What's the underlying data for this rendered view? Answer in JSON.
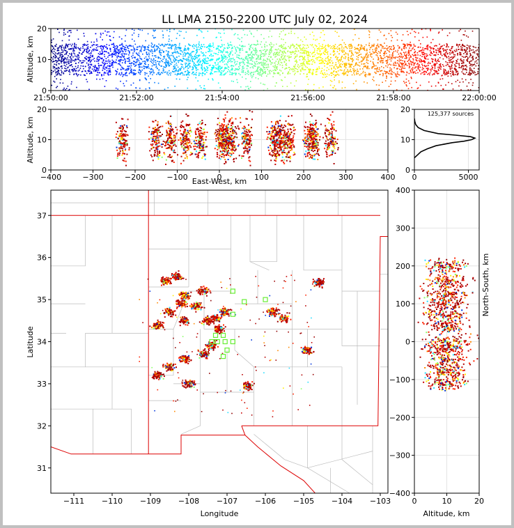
{
  "title": "LL LMA 2150-2200 UTC July 02, 2024",
  "chart_data": [
    {
      "id": "time-height",
      "type": "scatter",
      "xlabel": "",
      "ylabel": "Altitude, km",
      "xlim": [
        "21:50:00",
        "22:00:00"
      ],
      "ylim": [
        0,
        20
      ],
      "xticks": [
        "21:50:00",
        "21:52:00",
        "21:54:00",
        "21:56:00",
        "21:58:00",
        "22:00:00"
      ],
      "yticks": [
        0,
        10,
        20
      ],
      "color_by": "time",
      "colormap": "jet",
      "altitude_core_km": [
        5,
        15
      ]
    },
    {
      "id": "ew-altitude",
      "type": "scatter",
      "xlabel": "East-West, km",
      "ylabel": "Altitude, km",
      "xlim": [
        -400,
        400
      ],
      "ylim": [
        0,
        20
      ],
      "xticks": [
        -400,
        -300,
        -200,
        -100,
        0,
        100,
        200,
        300,
        400
      ],
      "yticks": [
        0,
        10,
        20
      ],
      "grid": true,
      "clusters_x_km": [
        -230,
        -150,
        -115,
        -80,
        -45,
        5,
        15,
        30,
        65,
        130,
        145,
        165,
        215,
        225,
        265
      ]
    },
    {
      "id": "altitude-histogram",
      "type": "line",
      "annotation": "125,377 sources",
      "xlim": [
        0,
        6000
      ],
      "ylim": [
        0,
        20
      ],
      "xticks": [
        0,
        5000
      ],
      "yticks": [
        0,
        10,
        20
      ],
      "altitude_km": [
        4,
        5,
        6,
        7,
        8,
        9,
        9.5,
        10,
        10.5,
        11,
        11.5,
        12,
        13,
        14,
        15,
        16,
        17
      ],
      "sources": [
        0,
        300,
        600,
        1200,
        2000,
        3500,
        4600,
        5300,
        5600,
        5200,
        3800,
        2200,
        900,
        350,
        120,
        40,
        0
      ]
    },
    {
      "id": "plan-view",
      "type": "scatter",
      "xlabel": "Longitude",
      "ylabel": "Latitude",
      "xlim": [
        -111.6,
        -102.8
      ],
      "ylim": [
        30.4,
        37.6
      ],
      "xticks": [
        -111,
        -110,
        -109,
        -108,
        -107,
        -106,
        -105,
        -104,
        -103
      ],
      "yticks": [
        31,
        32,
        33,
        34,
        35,
        36,
        37
      ],
      "boundary_color": "#dd0000",
      "county_color": "#bbbbbb",
      "station_color": "#66ee33",
      "storms": [
        {
          "lon": -107.2,
          "lat": 34.3
        },
        {
          "lon": -107.05,
          "lat": 34.7
        },
        {
          "lon": -107.4,
          "lat": 33.9
        },
        {
          "lon": -107.6,
          "lat": 33.7
        },
        {
          "lon": -108.1,
          "lat": 33.6
        },
        {
          "lon": -108.5,
          "lat": 33.4
        },
        {
          "lon": -108.8,
          "lat": 33.2
        },
        {
          "lon": -108.5,
          "lat": 34.7
        },
        {
          "lon": -108.8,
          "lat": 34.4
        },
        {
          "lon": -108.2,
          "lat": 34.9
        },
        {
          "lon": -107.8,
          "lat": 34.85
        },
        {
          "lon": -107.3,
          "lat": 34.55
        },
        {
          "lon": -108.1,
          "lat": 35.1
        },
        {
          "lon": -107.6,
          "lat": 35.2
        },
        {
          "lon": -108.3,
          "lat": 35.55
        },
        {
          "lon": -106.45,
          "lat": 32.95
        },
        {
          "lon": -105.8,
          "lat": 34.7
        },
        {
          "lon": -105.5,
          "lat": 34.55
        },
        {
          "lon": -104.6,
          "lat": 35.4
        },
        {
          "lon": -104.9,
          "lat": 33.8
        },
        {
          "lon": -108.0,
          "lat": 33.0
        },
        {
          "lon": -108.1,
          "lat": 34.5
        },
        {
          "lon": -107.5,
          "lat": 34.5
        },
        {
          "lon": -108.6,
          "lat": 35.45
        }
      ],
      "stations": [
        {
          "lon": -107.4,
          "lat": 34.0
        },
        {
          "lon": -107.25,
          "lat": 34.0
        },
        {
          "lon": -107.05,
          "lat": 34.0
        },
        {
          "lon": -106.85,
          "lat": 34.0
        },
        {
          "lon": -107.3,
          "lat": 34.15
        },
        {
          "lon": -107.1,
          "lat": 34.15
        },
        {
          "lon": -107.0,
          "lat": 33.8
        },
        {
          "lon": -107.1,
          "lat": 33.65
        },
        {
          "lon": -106.85,
          "lat": 34.65
        },
        {
          "lon": -106.55,
          "lat": 34.95
        },
        {
          "lon": -106.0,
          "lat": 35.0
        },
        {
          "lon": -106.85,
          "lat": 35.2
        }
      ]
    },
    {
      "id": "altitude-ns",
      "type": "scatter",
      "xlabel": "Altitude, km",
      "ylabel": "North-South, km",
      "xlim": [
        0,
        20
      ],
      "ylim": [
        -400,
        400
      ],
      "xticks": [
        0,
        10,
        20
      ],
      "yticks": [
        -400,
        -300,
        -200,
        -100,
        0,
        100,
        200,
        300,
        400
      ],
      "grid": true,
      "clusters_y_km": [
        -110,
        -80,
        -50,
        -20,
        0,
        40,
        70,
        100,
        130,
        160,
        200
      ]
    }
  ]
}
